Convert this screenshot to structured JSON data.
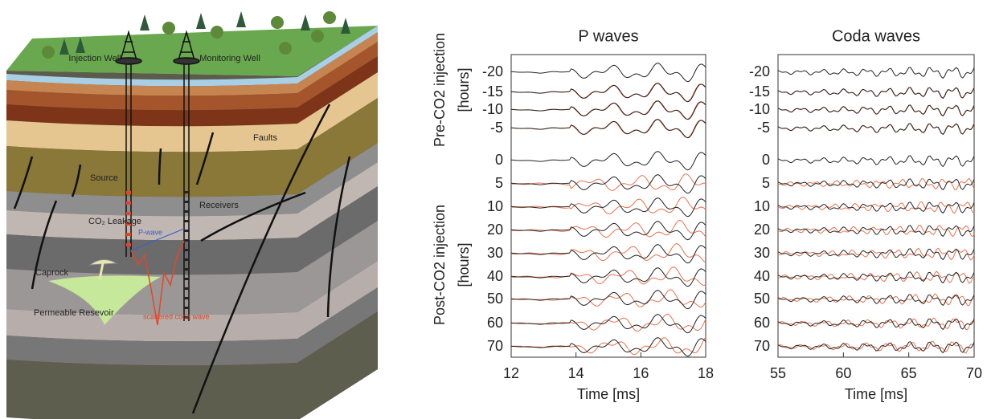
{
  "diagram": {
    "labels": {
      "injection_well": "Injection Well",
      "monitoring_well": "Monitoring Well",
      "faults": "Faults",
      "source": "Source",
      "receivers": "Receivers",
      "co2_leakage": "CO₂ Leakage",
      "p_wave": "P-wave",
      "caprock": "Caprock",
      "permeable_reservoir": "Permeable Resevoir",
      "scattered_coda_wave": "scattered coda wave"
    }
  },
  "y_labels": {
    "pre": "Pre-CO2 injection",
    "pre_unit": "[hours]",
    "post": "Post-CO2 injection",
    "post_unit": "[hours]"
  },
  "panels": [
    {
      "title": "P waves",
      "traces": [
        "-20",
        "-15",
        "-10",
        "-5",
        "0",
        "5",
        "10",
        "20",
        "30",
        "40",
        "50",
        "60",
        "70"
      ],
      "xlabel": "Time [ms]",
      "xlim": [
        12,
        18
      ],
      "xticks": [
        12,
        14,
        16,
        18
      ]
    },
    {
      "title": "Coda waves",
      "traces": [
        "-20",
        "-15",
        "-10",
        "-5",
        "0",
        "5",
        "10",
        "20",
        "30",
        "40",
        "50",
        "60",
        "70"
      ],
      "xlabel": "Time [ms]",
      "xlim": [
        55,
        70
      ],
      "xticks": [
        55,
        60,
        65,
        70
      ]
    }
  ]
}
